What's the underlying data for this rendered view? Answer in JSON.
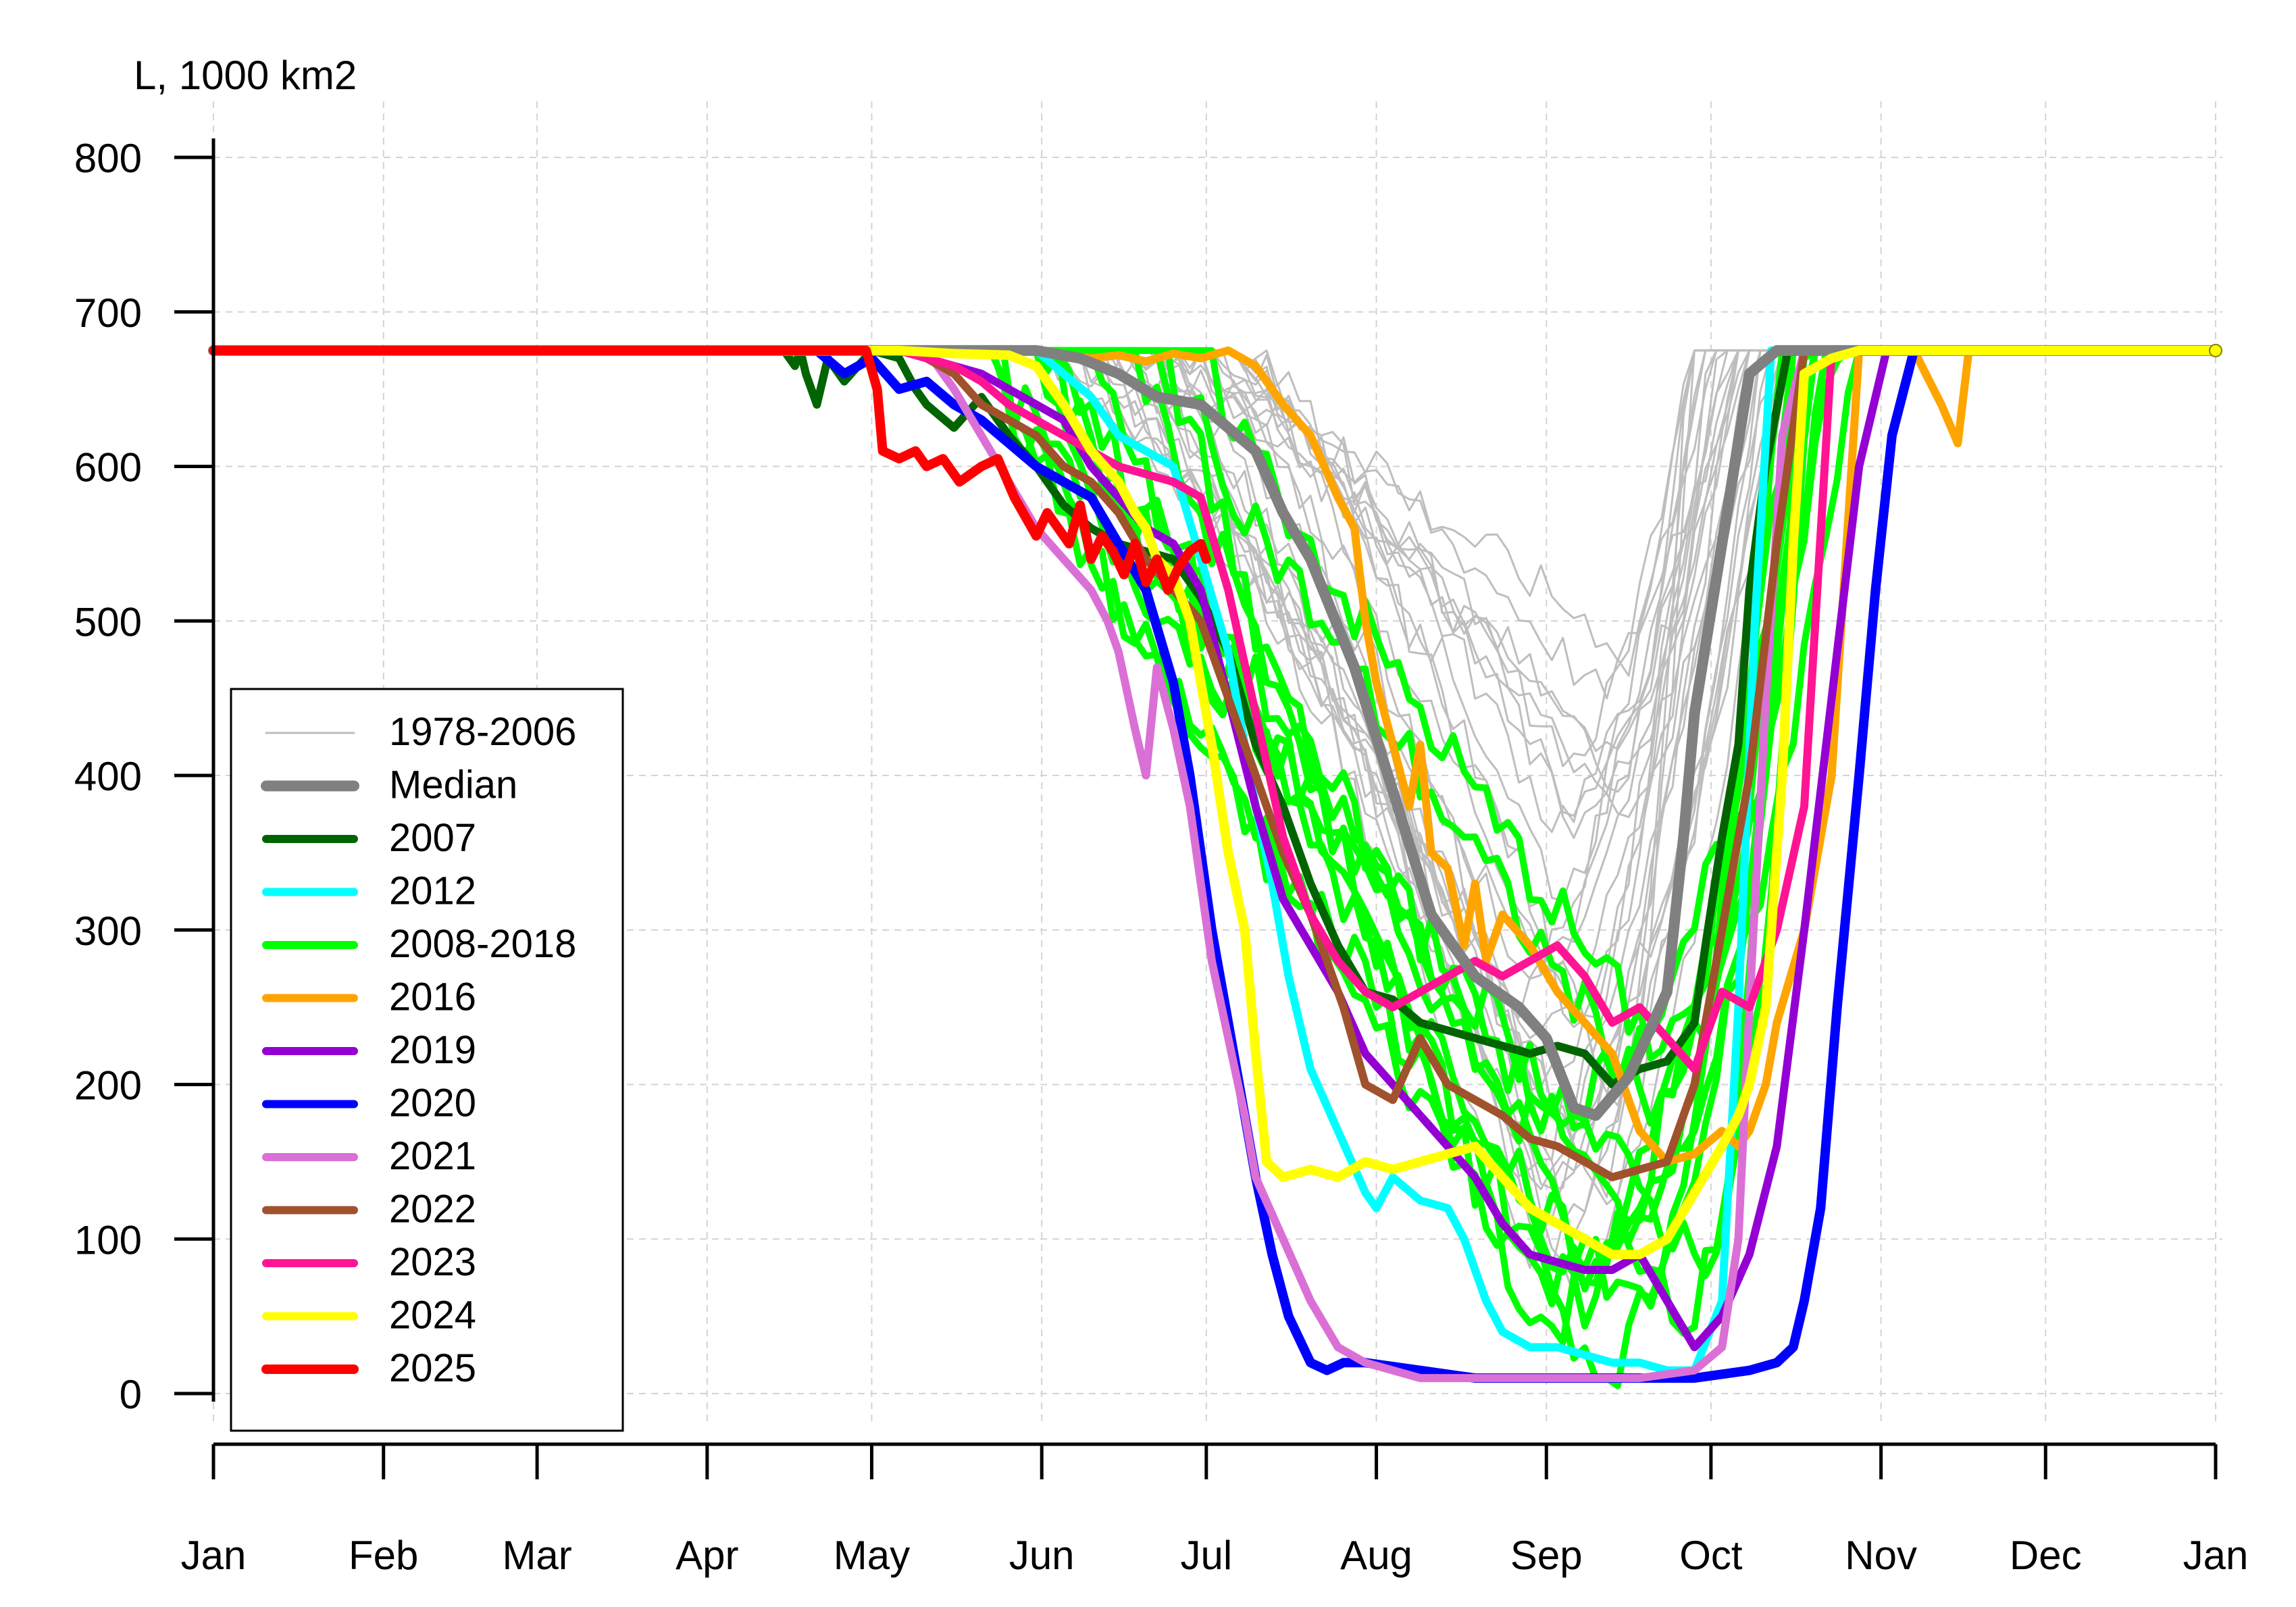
{
  "chart_data": {
    "type": "line",
    "title": "",
    "ylabel": "L, 1000 km2",
    "xlabel": "",
    "ylim": [
      0,
      800
    ],
    "xlim_days": [
      0,
      365
    ],
    "grid": true,
    "legend_position": "bottom-left",
    "y_ticks": [
      "0",
      "100",
      "200",
      "300",
      "400",
      "500",
      "600",
      "700",
      "800"
    ],
    "x_ticks": [
      "Jan",
      "Feb",
      "Mar",
      "Apr",
      "May",
      "Jun",
      "Jul",
      "Aug",
      "Sep",
      "Oct",
      "Nov",
      "Dec",
      "Jan"
    ],
    "x_tick_days": [
      0,
      31,
      59,
      90,
      120,
      151,
      181,
      212,
      243,
      273,
      304,
      334,
      365
    ],
    "colors": {
      "historical": "#bebebe",
      "median": "#808080",
      "y2007": "#006400",
      "y2012": "#00ffff",
      "y2008_2018": "#00ff00",
      "y2016": "#ffa500",
      "y2019": "#9400d3",
      "y2020": "#0000ff",
      "y2021": "#da70d6",
      "y2022": "#a0522d",
      "y2023": "#ff1493",
      "y2024": "#ffff00",
      "y2025": "#ff0000"
    },
    "legend": [
      {
        "label": "1978-2006",
        "color": "#bebebe",
        "width": 3
      },
      {
        "label": "Median",
        "color": "#808080",
        "width": 16
      },
      {
        "label": "2007",
        "color": "#006400",
        "width": 12
      },
      {
        "label": "2012",
        "color": "#00ffff",
        "width": 12
      },
      {
        "label": "2008-2018",
        "color": "#00ff00",
        "width": 12
      },
      {
        "label": "2016",
        "color": "#ffa500",
        "width": 12
      },
      {
        "label": "2019",
        "color": "#9400d3",
        "width": 12
      },
      {
        "label": "2020",
        "color": "#0000ff",
        "width": 12
      },
      {
        "label": "2021",
        "color": "#da70d6",
        "width": 12
      },
      {
        "label": "2022",
        "color": "#a0522d",
        "width": 12
      },
      {
        "label": "2023",
        "color": "#ff1493",
        "width": 12
      },
      {
        "label": "2024",
        "color": "#ffff00",
        "width": 12
      },
      {
        "label": "2025",
        "color": "#ff0000",
        "width": 14
      }
    ],
    "series": [
      {
        "name": "Median",
        "color": "#808080",
        "width": 16,
        "x": [
          0,
          150,
          158,
          165,
          172,
          180,
          190,
          195,
          200,
          208,
          215,
          222,
          230,
          238,
          243,
          248,
          252,
          258,
          265,
          268,
          270,
          275,
          280,
          285,
          365
        ],
        "y": [
          675,
          675,
          670,
          660,
          645,
          640,
          610,
          570,
          540,
          470,
          390,
          310,
          270,
          250,
          230,
          185,
          180,
          205,
          260,
          360,
          440,
          550,
          660,
          675,
          675
        ]
      },
      {
        "name": "2007",
        "color": "#006400",
        "width": 12,
        "x": [
          0,
          104,
          106,
          107,
          108,
          110,
          112,
          115,
          120,
          125,
          128,
          130,
          135,
          140,
          145,
          150,
          155,
          160,
          165,
          170,
          175,
          180,
          185,
          190,
          195,
          200,
          205,
          210,
          215,
          220,
          225,
          230,
          235,
          240,
          245,
          250,
          255,
          260,
          265,
          270,
          272,
          275,
          278,
          280,
          283,
          287,
          365
        ],
        "y": [
          675,
          675,
          665,
          675,
          660,
          640,
          670,
          655,
          675,
          670,
          650,
          640,
          625,
          645,
          620,
          600,
          575,
          560,
          550,
          545,
          540,
          515,
          480,
          420,
          380,
          330,
          290,
          260,
          255,
          240,
          235,
          230,
          225,
          220,
          225,
          220,
          200,
          210,
          215,
          240,
          290,
          360,
          420,
          520,
          600,
          675,
          675
        ]
      },
      {
        "name": "2012",
        "color": "#00ffff",
        "width": 12,
        "x": [
          0,
          150,
          155,
          160,
          165,
          170,
          175,
          180,
          185,
          188,
          190,
          193,
          196,
          200,
          205,
          210,
          212,
          215,
          220,
          225,
          228,
          232,
          235,
          240,
          245,
          250,
          255,
          260,
          265,
          270,
          275,
          278,
          281,
          284,
          365
        ],
        "y": [
          675,
          675,
          660,
          645,
          620,
          610,
          600,
          540,
          480,
          420,
          380,
          330,
          270,
          210,
          170,
          130,
          120,
          140,
          125,
          120,
          100,
          60,
          40,
          30,
          30,
          25,
          20,
          20,
          15,
          15,
          60,
          250,
          500,
          675,
          675
        ]
      },
      {
        "name": "2016",
        "color": "#ffa500",
        "width": 12,
        "x": [
          0,
          150,
          160,
          165,
          170,
          175,
          180,
          185,
          190,
          195,
          200,
          205,
          208,
          210,
          212,
          215,
          218,
          220,
          222,
          225,
          228,
          230,
          232,
          235,
          240,
          245,
          250,
          255,
          260,
          265,
          270,
          275,
          278,
          280,
          283,
          285,
          290,
          295,
          300,
          305,
          310,
          315,
          318,
          320,
          325,
          365
        ],
        "y": [
          675,
          675,
          670,
          672,
          668,
          673,
          670,
          675,
          665,
          640,
          620,
          580,
          560,
          500,
          460,
          420,
          380,
          420,
          350,
          340,
          290,
          330,
          280,
          310,
          290,
          260,
          240,
          220,
          170,
          150,
          155,
          170,
          160,
          170,
          200,
          240,
          300,
          400,
          675,
          675,
          675,
          640,
          615,
          675,
          675,
          675
        ]
      },
      {
        "name": "2019",
        "color": "#9400d3",
        "width": 12,
        "x": [
          0,
          125,
          130,
          135,
          140,
          145,
          150,
          155,
          160,
          165,
          170,
          175,
          180,
          185,
          190,
          195,
          200,
          205,
          210,
          215,
          220,
          225,
          230,
          235,
          240,
          245,
          250,
          255,
          260,
          265,
          270,
          275,
          280,
          285,
          290,
          295,
          300,
          305,
          365
        ],
        "y": [
          675,
          675,
          670,
          665,
          660,
          650,
          640,
          630,
          600,
          580,
          560,
          550,
          520,
          450,
          380,
          320,
          290,
          260,
          220,
          200,
          180,
          160,
          140,
          110,
          90,
          85,
          80,
          80,
          90,
          60,
          30,
          50,
          90,
          160,
          300,
          450,
          600,
          675,
          675
        ]
      },
      {
        "name": "2020",
        "color": "#0000ff",
        "width": 14,
        "x": [
          0,
          110,
          115,
          120,
          125,
          130,
          135,
          140,
          145,
          150,
          155,
          160,
          165,
          170,
          175,
          178,
          180,
          182,
          185,
          188,
          190,
          193,
          196,
          200,
          203,
          206,
          210,
          220,
          230,
          240,
          250,
          260,
          270,
          280,
          285,
          288,
          290,
          293,
          296,
          300,
          303,
          306,
          310,
          315,
          320,
          365
        ],
        "y": [
          675,
          675,
          660,
          670,
          650,
          655,
          640,
          630,
          615,
          600,
          590,
          580,
          550,
          520,
          460,
          400,
          350,
          300,
          240,
          180,
          140,
          90,
          50,
          20,
          15,
          20,
          20,
          15,
          10,
          10,
          10,
          10,
          10,
          15,
          20,
          30,
          60,
          120,
          250,
          400,
          520,
          620,
          675,
          675,
          675,
          675
        ]
      },
      {
        "name": "2021",
        "color": "#da70d6",
        "width": 12,
        "x": [
          0,
          130,
          135,
          140,
          145,
          150,
          155,
          160,
          163,
          165,
          168,
          170,
          172,
          175,
          178,
          180,
          182,
          185,
          188,
          190,
          195,
          200,
          205,
          210,
          215,
          220,
          230,
          240,
          250,
          260,
          270,
          275,
          278,
          280,
          283,
          286,
          290,
          365
        ],
        "y": [
          675,
          675,
          650,
          620,
          590,
          560,
          540,
          520,
          500,
          480,
          430,
          400,
          470,
          430,
          380,
          330,
          280,
          230,
          180,
          140,
          100,
          60,
          30,
          20,
          15,
          10,
          10,
          10,
          10,
          10,
          15,
          30,
          100,
          250,
          450,
          620,
          675,
          675
        ]
      },
      {
        "name": "2022",
        "color": "#a0522d",
        "width": 12,
        "x": [
          0,
          125,
          130,
          135,
          140,
          145,
          150,
          155,
          160,
          165,
          170,
          175,
          180,
          185,
          190,
          195,
          200,
          203,
          206,
          210,
          215,
          220,
          225,
          230,
          235,
          240,
          245,
          250,
          255,
          260,
          265,
          270,
          275,
          280,
          285,
          290,
          365
        ],
        "y": [
          675,
          675,
          670,
          660,
          640,
          630,
          620,
          600,
          590,
          570,
          540,
          520,
          500,
          450,
          400,
          350,
          310,
          280,
          250,
          200,
          190,
          230,
          200,
          190,
          180,
          165,
          160,
          150,
          140,
          145,
          150,
          200,
          300,
          400,
          550,
          675,
          675
        ]
      },
      {
        "name": "2023",
        "color": "#ff1493",
        "width": 12,
        "x": [
          0,
          125,
          130,
          135,
          140,
          145,
          150,
          155,
          160,
          165,
          170,
          175,
          180,
          185,
          190,
          195,
          200,
          205,
          210,
          215,
          220,
          225,
          230,
          235,
          240,
          245,
          250,
          255,
          260,
          265,
          270,
          275,
          280,
          285,
          290,
          295,
          365
        ],
        "y": [
          675,
          675,
          670,
          665,
          655,
          640,
          630,
          620,
          610,
          600,
          595,
          590,
          580,
          520,
          440,
          360,
          310,
          280,
          260,
          250,
          260,
          270,
          280,
          270,
          280,
          290,
          270,
          240,
          250,
          230,
          210,
          260,
          250,
          300,
          380,
          675,
          675
        ]
      },
      {
        "name": "2024",
        "color": "#ffff00",
        "width": 14,
        "x": [
          0,
          125,
          135,
          145,
          150,
          155,
          160,
          165,
          168,
          170,
          172,
          175,
          178,
          180,
          182,
          185,
          188,
          190,
          192,
          195,
          200,
          205,
          210,
          215,
          220,
          225,
          230,
          235,
          240,
          245,
          250,
          255,
          260,
          265,
          270,
          275,
          278,
          280,
          283,
          286,
          288,
          290,
          295,
          300,
          365
        ],
        "y": [
          675,
          675,
          673,
          672,
          665,
          640,
          610,
          590,
          570,
          560,
          540,
          530,
          500,
          460,
          420,
          350,
          300,
          220,
          150,
          140,
          145,
          140,
          150,
          145,
          150,
          155,
          160,
          140,
          120,
          110,
          100,
          90,
          90,
          100,
          130,
          160,
          180,
          200,
          250,
          400,
          550,
          660,
          670,
          675,
          675
        ]
      },
      {
        "name": "2025",
        "color": "#ff0000",
        "width": 14,
        "x": [
          0,
          119,
          121,
          122,
          125,
          128,
          130,
          133,
          136,
          140,
          143,
          146,
          150,
          152,
          154,
          156,
          158,
          160,
          162,
          164,
          166,
          168,
          170,
          172,
          174,
          176,
          178,
          180,
          181
        ],
        "y": [
          675,
          675,
          650,
          610,
          605,
          610,
          600,
          605,
          590,
          600,
          605,
          580,
          555,
          570,
          560,
          550,
          575,
          540,
          555,
          545,
          530,
          550,
          525,
          540,
          520,
          535,
          545,
          550,
          540
        ]
      }
    ],
    "band_2008_2018": {
      "name": "2008-2018",
      "color": "#00ff00",
      "width": 10,
      "count": 11
    },
    "historical_range": {
      "name": "1978-2006",
      "color": "#bebebe",
      "width": 3,
      "count": 29
    }
  }
}
